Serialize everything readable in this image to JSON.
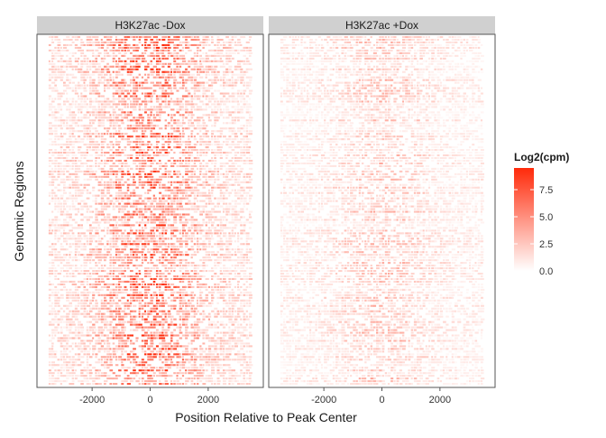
{
  "chart_data": {
    "type": "heatmap",
    "panels": [
      {
        "title": "H3K27ac -Dox",
        "center_intensity": 1.0,
        "base_intensity": 0.22
      },
      {
        "title": "H3K27ac +Dox",
        "center_intensity": 0.32,
        "base_intensity": 0.12
      }
    ],
    "xlabel": "Position Relative to Peak Center",
    "ylabel": "Genomic Regions",
    "xlim": [
      -3900,
      3900
    ],
    "data_x_extent": [
      -3500,
      3500
    ],
    "xticks": [
      -2000,
      0,
      2000
    ],
    "xtick_labels": [
      "-2000",
      "0",
      "2000"
    ],
    "legend": {
      "title": "Log2(cpm)",
      "min": 0,
      "max": 9.5,
      "ticks": [
        0.0,
        2.5,
        5.0,
        7.5
      ],
      "tick_labels": [
        "0.0",
        "2.5",
        "5.0",
        "7.5"
      ],
      "position": "right",
      "low_color": "#ffffff",
      "high_color": "#ff2a0a"
    },
    "grid": false,
    "strip_color": "#d0d0d0"
  }
}
